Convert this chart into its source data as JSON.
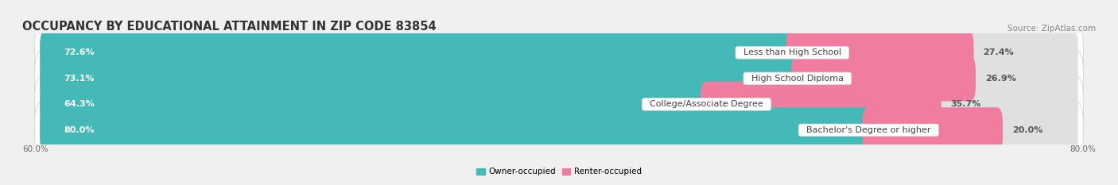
{
  "title": "OCCUPANCY BY EDUCATIONAL ATTAINMENT IN ZIP CODE 83854",
  "source": "Source: ZipAtlas.com",
  "categories": [
    "Less than High School",
    "High School Diploma",
    "College/Associate Degree",
    "Bachelor's Degree or higher"
  ],
  "owner_values": [
    72.6,
    73.1,
    64.3,
    80.0
  ],
  "renter_values": [
    27.4,
    26.9,
    35.7,
    20.0
  ],
  "owner_color": "#45b8b8",
  "renter_color": "#f07ca0",
  "owner_label": "Owner-occupied",
  "renter_label": "Renter-occupied",
  "x_left_label": "60.0%",
  "x_right_label": "80.0%",
  "bar_height": 0.62,
  "background_color": "#f0f0f0",
  "bar_background": "#e0e0e0",
  "title_fontsize": 10.5,
  "source_fontsize": 7.5,
  "label_fontsize": 8,
  "pct_fontsize": 8,
  "tick_fontsize": 7.5,
  "total_width": 1.0,
  "renter_scale": 0.38
}
